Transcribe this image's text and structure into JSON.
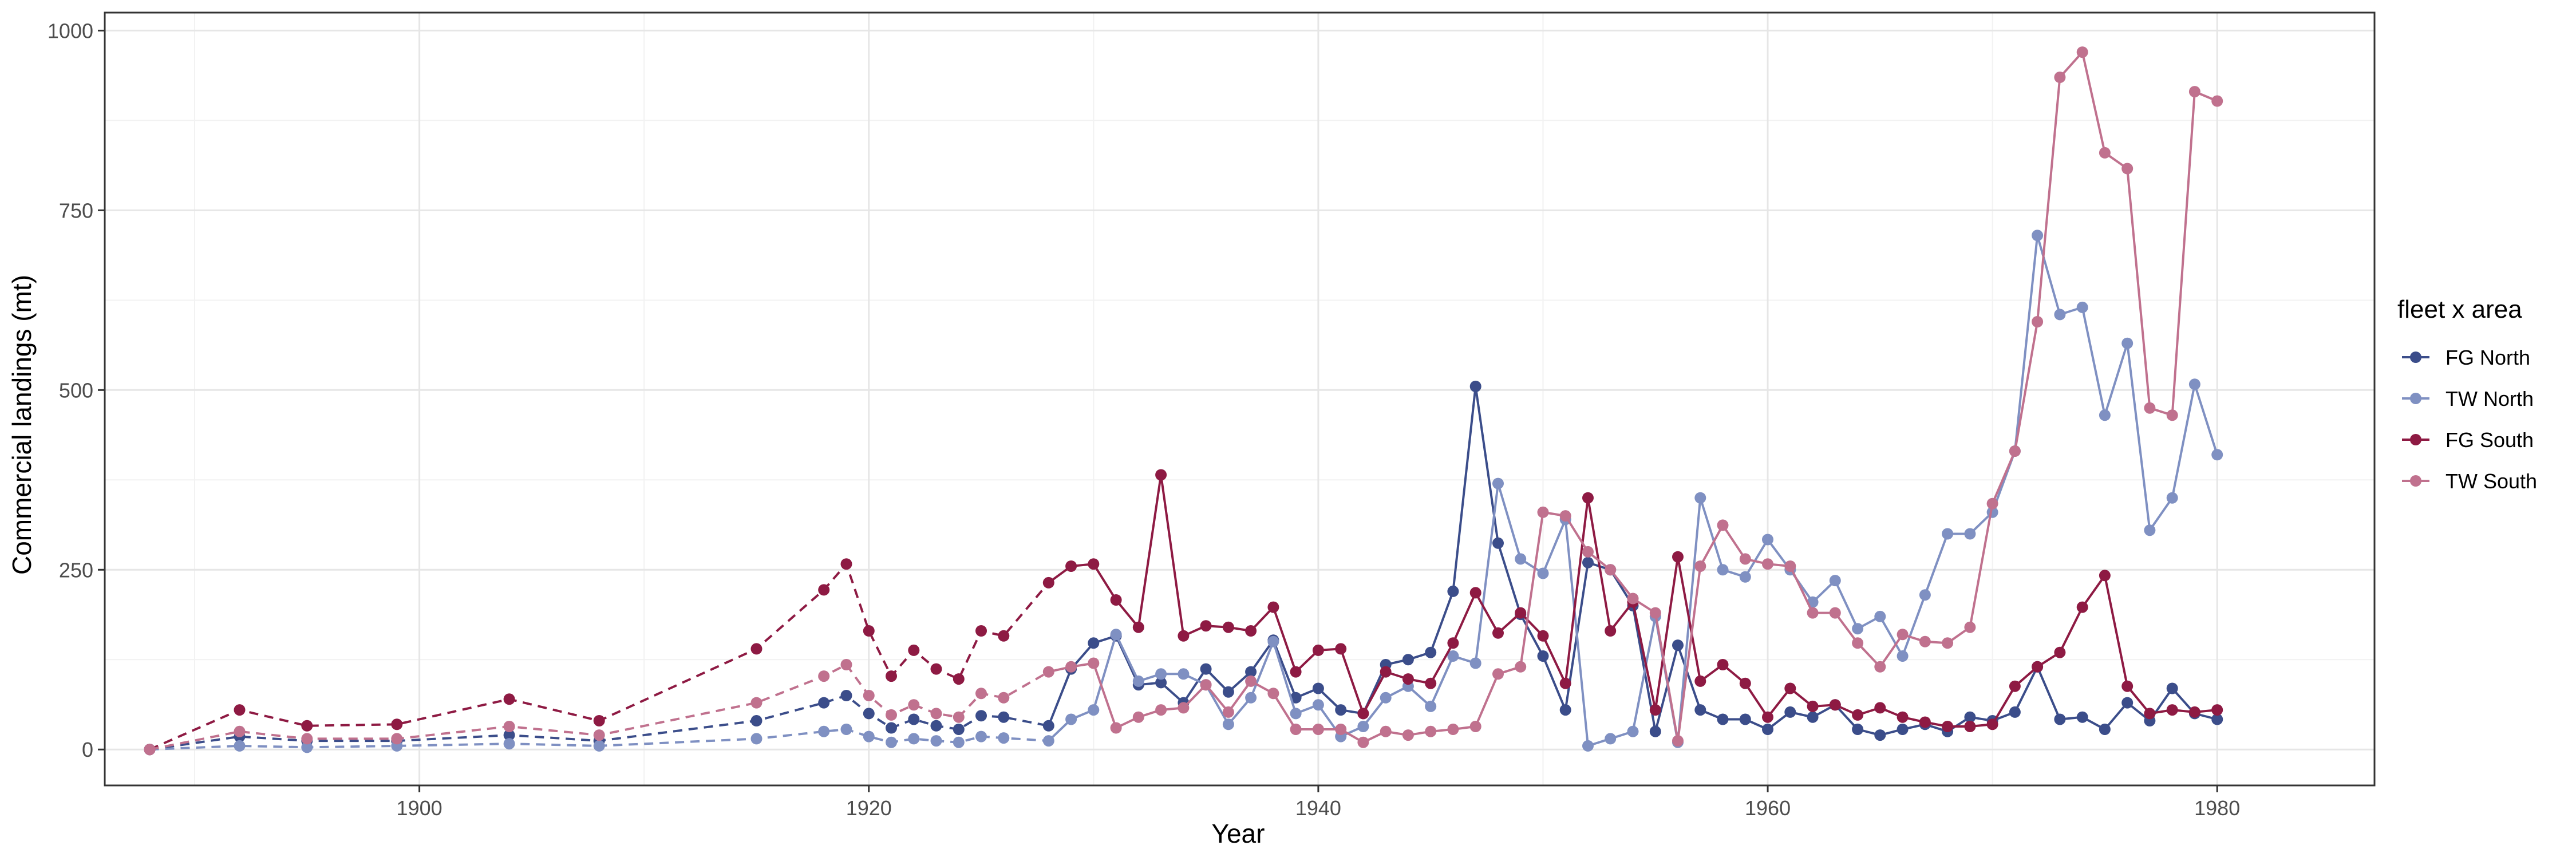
{
  "chart_data": {
    "type": "line",
    "title": "",
    "xlabel": "Year",
    "ylabel": "Commercial landings (mt)",
    "xlim": [
      1886,
      1987
    ],
    "ylim": [
      -50,
      1025
    ],
    "x_ticks": [
      1900,
      1920,
      1940,
      1960,
      1980
    ],
    "y_ticks": [
      0,
      250,
      500,
      750,
      1000
    ],
    "grid": true,
    "legend": {
      "title": "fleet x area",
      "position": "right"
    },
    "line_styles": {
      "dashed_through_year": 1928,
      "solid_from_year": 1928
    },
    "series": [
      {
        "name": "FG North",
        "color": "#3B4D8A",
        "x": [
          1888,
          1892,
          1895,
          1899,
          1904,
          1908,
          1915,
          1918,
          1919,
          1920,
          1921,
          1922,
          1923,
          1924,
          1925,
          1926,
          1928,
          1929,
          1930,
          1931,
          1932,
          1933,
          1934,
          1935,
          1936,
          1937,
          1938,
          1939,
          1940,
          1941,
          1942,
          1943,
          1944,
          1945,
          1946,
          1947,
          1948,
          1949,
          1950,
          1951,
          1952,
          1953,
          1954,
          1955,
          1956,
          1957,
          1958,
          1959,
          1960,
          1961,
          1962,
          1963,
          1964,
          1965,
          1966,
          1967,
          1968,
          1969,
          1970,
          1971,
          1972,
          1973,
          1974,
          1975,
          1976,
          1977,
          1978,
          1979,
          1980
        ],
        "y": [
          0,
          18,
          12,
          12,
          20,
          12,
          40,
          65,
          75,
          50,
          30,
          42,
          33,
          28,
          47,
          45,
          33,
          112,
          148,
          158,
          90,
          93,
          65,
          112,
          80,
          108,
          152,
          72,
          85,
          55,
          50,
          118,
          125,
          135,
          220,
          505,
          287,
          188,
          130,
          55,
          260,
          250,
          200,
          25,
          145,
          55,
          42,
          42,
          28,
          52,
          45,
          62,
          28,
          20,
          28,
          35,
          25,
          45,
          40,
          52,
          115,
          42,
          45,
          28,
          65,
          40,
          85,
          50,
          42
        ]
      },
      {
        "name": "TW North",
        "color": "#7F90C2",
        "x": [
          1888,
          1892,
          1895,
          1899,
          1904,
          1908,
          1915,
          1918,
          1919,
          1920,
          1921,
          1922,
          1923,
          1924,
          1925,
          1926,
          1928,
          1929,
          1930,
          1931,
          1932,
          1933,
          1934,
          1935,
          1936,
          1937,
          1938,
          1939,
          1940,
          1941,
          1942,
          1943,
          1944,
          1945,
          1946,
          1947,
          1948,
          1949,
          1950,
          1951,
          1952,
          1953,
          1954,
          1955,
          1956,
          1957,
          1958,
          1959,
          1960,
          1961,
          1962,
          1963,
          1964,
          1965,
          1966,
          1967,
          1968,
          1969,
          1970,
          1971,
          1972,
          1973,
          1974,
          1975,
          1976,
          1977,
          1978,
          1979,
          1980
        ],
        "y": [
          0,
          5,
          3,
          5,
          8,
          5,
          15,
          25,
          28,
          18,
          10,
          15,
          12,
          10,
          18,
          16,
          12,
          42,
          55,
          160,
          95,
          105,
          105,
          90,
          35,
          72,
          150,
          50,
          62,
          18,
          32,
          72,
          88,
          60,
          130,
          120,
          370,
          265,
          245,
          320,
          5,
          15,
          25,
          185,
          10,
          350,
          250,
          240,
          292,
          250,
          205,
          235,
          168,
          185,
          130,
          215,
          300,
          300,
          330,
          415,
          715,
          605,
          615,
          465,
          565,
          305,
          350,
          508,
          410
        ]
      },
      {
        "name": "FG South",
        "color": "#8E1A43",
        "x": [
          1888,
          1892,
          1895,
          1899,
          1904,
          1908,
          1915,
          1918,
          1919,
          1920,
          1921,
          1922,
          1923,
          1924,
          1925,
          1926,
          1928,
          1929,
          1930,
          1931,
          1932,
          1933,
          1934,
          1935,
          1936,
          1937,
          1938,
          1939,
          1940,
          1941,
          1942,
          1943,
          1944,
          1945,
          1946,
          1947,
          1948,
          1949,
          1950,
          1951,
          1952,
          1953,
          1954,
          1955,
          1956,
          1957,
          1958,
          1959,
          1960,
          1961,
          1962,
          1963,
          1964,
          1965,
          1966,
          1967,
          1968,
          1969,
          1970,
          1971,
          1972,
          1973,
          1974,
          1975,
          1976,
          1977,
          1978,
          1979,
          1980
        ],
        "y": [
          0,
          55,
          33,
          35,
          70,
          40,
          140,
          222,
          258,
          165,
          102,
          138,
          112,
          98,
          165,
          158,
          232,
          255,
          258,
          208,
          170,
          382,
          158,
          172,
          170,
          165,
          198,
          108,
          138,
          140,
          50,
          108,
          98,
          92,
          148,
          218,
          162,
          190,
          158,
          92,
          350,
          165,
          205,
          55,
          268,
          95,
          118,
          92,
          45,
          85,
          60,
          62,
          48,
          58,
          45,
          38,
          32,
          32,
          35,
          88,
          115,
          135,
          198,
          242,
          88,
          50,
          55,
          52,
          55
        ]
      },
      {
        "name": "TW South",
        "color": "#C0718E",
        "x": [
          1888,
          1892,
          1895,
          1899,
          1904,
          1908,
          1915,
          1918,
          1919,
          1920,
          1921,
          1922,
          1923,
          1924,
          1925,
          1926,
          1928,
          1929,
          1930,
          1931,
          1932,
          1933,
          1934,
          1935,
          1936,
          1937,
          1938,
          1939,
          1940,
          1941,
          1942,
          1943,
          1944,
          1945,
          1946,
          1947,
          1948,
          1949,
          1950,
          1951,
          1952,
          1953,
          1954,
          1955,
          1956,
          1957,
          1958,
          1959,
          1960,
          1961,
          1962,
          1963,
          1964,
          1965,
          1966,
          1967,
          1968,
          1969,
          1970,
          1971,
          1972,
          1973,
          1974,
          1975,
          1976,
          1977,
          1978,
          1979,
          1980
        ],
        "y": [
          0,
          25,
          15,
          15,
          32,
          20,
          65,
          102,
          118,
          75,
          48,
          62,
          50,
          45,
          78,
          72,
          108,
          115,
          120,
          30,
          45,
          55,
          58,
          90,
          52,
          95,
          78,
          28,
          28,
          28,
          10,
          25,
          20,
          25,
          28,
          32,
          105,
          115,
          330,
          325,
          275,
          250,
          210,
          190,
          12,
          255,
          312,
          265,
          258,
          255,
          190,
          190,
          148,
          115,
          160,
          150,
          148,
          170,
          342,
          415,
          595,
          935,
          970,
          830,
          808,
          475,
          465,
          915,
          902
        ]
      }
    ]
  }
}
